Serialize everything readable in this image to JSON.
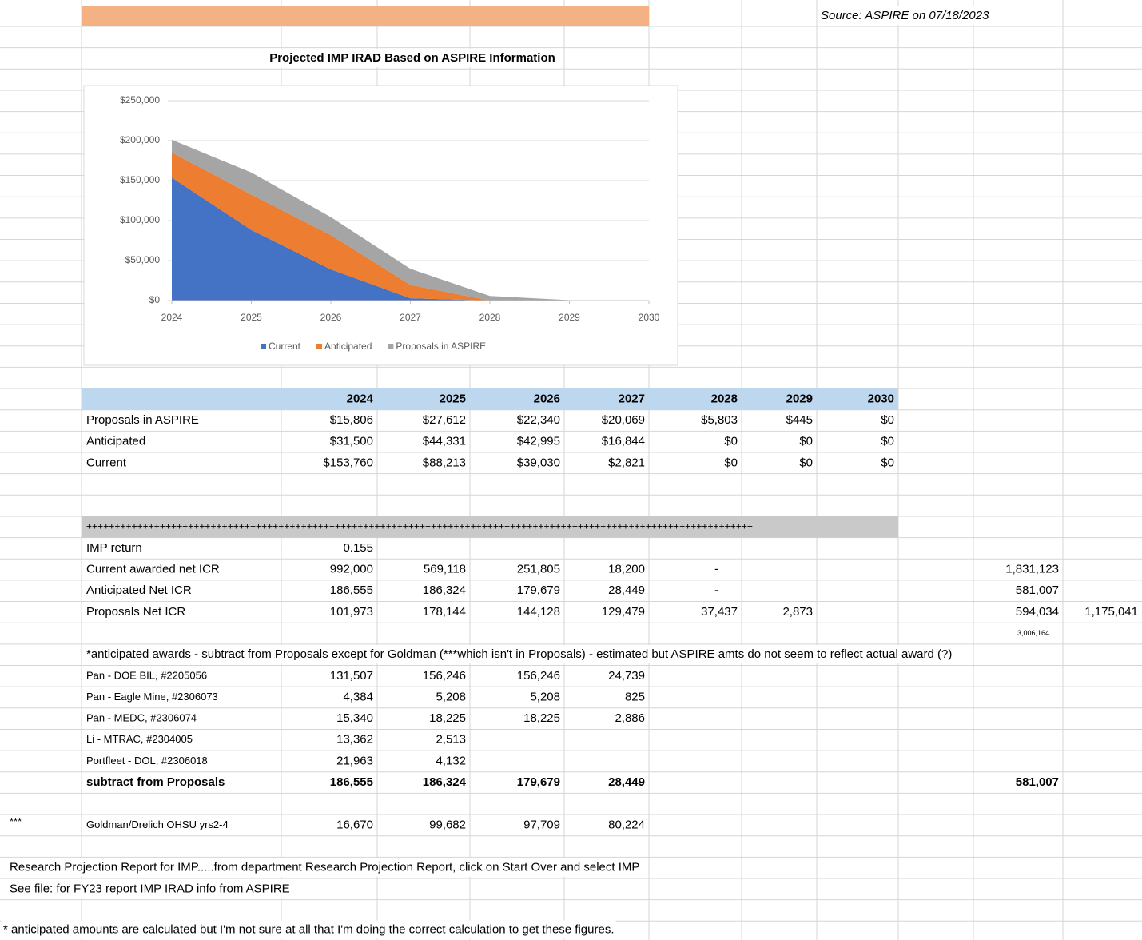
{
  "header": {
    "source": "Source: ASPIRE on 07/18/2023"
  },
  "chart_data": {
    "type": "area",
    "stacked": true,
    "title": "Projected IMP IRAD Based on ASPIRE Information",
    "x": [
      2024,
      2025,
      2026,
      2027,
      2028,
      2029,
      2030
    ],
    "xlim": [
      2024,
      2030
    ],
    "xticks": [
      2024,
      2025,
      2026,
      2027,
      2028,
      2029,
      2030
    ],
    "ylim": [
      0,
      250000
    ],
    "yticks": [
      {
        "value": 0,
        "label": "$0"
      },
      {
        "value": 50000,
        "label": "$50,000"
      },
      {
        "value": 100000,
        "label": "$100,000"
      },
      {
        "value": 150000,
        "label": "$150,000"
      },
      {
        "value": 200000,
        "label": "$200,000"
      },
      {
        "value": 250000,
        "label": "$250,000"
      }
    ],
    "grid": true,
    "legend": "bottom",
    "series": [
      {
        "name": "Current",
        "color": "#4472c4",
        "values": [
          153760,
          88213,
          39030,
          2821,
          0,
          0,
          0
        ]
      },
      {
        "name": "Anticipated",
        "color": "#ed7d31",
        "values": [
          31500,
          44331,
          42995,
          16844,
          0,
          0,
          0
        ]
      },
      {
        "name": "Proposals in ASPIRE",
        "color": "#a5a5a5",
        "values": [
          15806,
          27612,
          22340,
          20069,
          5803,
          445,
          0
        ]
      }
    ]
  },
  "summary_table": {
    "columns": [
      "2024",
      "2025",
      "2026",
      "2027",
      "2028",
      "2029",
      "2030"
    ],
    "rows": [
      {
        "label": "Proposals in ASPIRE",
        "cells": [
          "$15,806",
          "$27,612",
          "$22,340",
          "$20,069",
          "$5,803",
          "$445",
          "$0"
        ]
      },
      {
        "label": "Anticipated",
        "cells": [
          "$31,500",
          "$44,331",
          "$42,995",
          "$16,844",
          "$0",
          "$0",
          "$0"
        ]
      },
      {
        "label": "Current",
        "cells": [
          "$153,760",
          "$88,213",
          "$39,030",
          "$2,821",
          "$0",
          "$0",
          "$0"
        ]
      }
    ]
  },
  "separator": "++++++++++++++++++++++++++++++++++++++++++++++++++++++++++++++++++++++++++++++++++++++++++++++++++++++++++++++++++++++",
  "icr_table": {
    "rows": [
      {
        "label": "IMP return",
        "cells": [
          "0.155"
        ]
      },
      {
        "label": "Current awarded net ICR",
        "cells": [
          "992,000",
          "569,118",
          "251,805",
          "18,200",
          "-",
          null,
          null,
          null,
          "1,831,123"
        ]
      },
      {
        "label": "Anticipated Net ICR",
        "cells": [
          "186,555",
          "186,324",
          "179,679",
          "28,449",
          "-",
          null,
          null,
          null,
          "581,007"
        ]
      },
      {
        "label": "Proposals Net ICR",
        "cells": [
          "101,973",
          "178,144",
          "144,128",
          "129,479",
          "37,437",
          "2,873",
          null,
          null,
          "594,034",
          "1,175,041"
        ]
      }
    ],
    "grand_total": "3,006,164"
  },
  "note": "*anticipated awards - subtract from Proposals except for Goldman (***which isn't in Proposals) - estimated but ASPIRE amts do not seem to reflect actual award (?)",
  "awards_table": {
    "rows": [
      {
        "label": "Pan - DOE BIL, #2205056",
        "cells": [
          "131,507",
          "156,246",
          "156,246",
          "24,739"
        ]
      },
      {
        "label": "Pan - Eagle Mine, #2306073",
        "cells": [
          "4,384",
          "5,208",
          "5,208",
          "825"
        ]
      },
      {
        "label": "Pan - MEDC, #2306074",
        "cells": [
          "15,340",
          "18,225",
          "18,225",
          "2,886"
        ]
      },
      {
        "label": "Li - MTRAC, #2304005",
        "cells": [
          "13,362",
          "2,513"
        ]
      },
      {
        "label": "Portfleet - DOL, #2306018",
        "cells": [
          "21,963",
          "4,132"
        ]
      }
    ],
    "total": {
      "label": "subtract from Proposals",
      "cells": [
        "186,555",
        "186,324",
        "179,679",
        "28,449",
        null,
        null,
        null,
        null,
        "581,007"
      ]
    }
  },
  "goldman": {
    "marker": "***",
    "label": "Goldman/Drelich OHSU yrs2-4",
    "cells": [
      "16,670",
      "99,682",
      "97,709",
      "80,224"
    ]
  },
  "footer": {
    "line1": "Research Projection Report for IMP.....from department Research Projection Report, click on Start Over and select IMP",
    "line2": "See file: for FY23 report IMP IRAD info from ASPIRE",
    "line3": "* anticipated amounts are calculated but I'm not sure at all that I'm doing the correct calculation to get these figures."
  }
}
